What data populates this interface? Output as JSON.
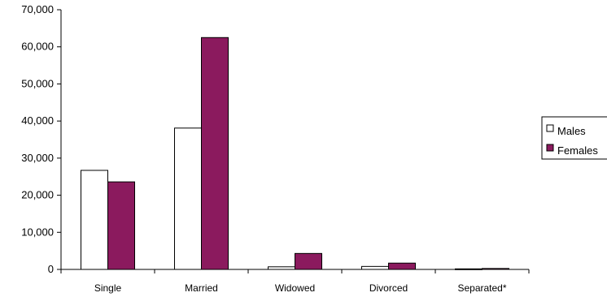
{
  "chart_data": {
    "type": "bar",
    "categories": [
      "Single",
      "Married",
      "Widowed",
      "Divorced",
      "Separated*"
    ],
    "series": [
      {
        "name": "Males",
        "values": [
          26700,
          38100,
          700,
          800,
          150
        ],
        "color": "#ffffff"
      },
      {
        "name": "Females",
        "values": [
          23600,
          62500,
          4300,
          1700,
          250
        ],
        "color": "#8b1a5e"
      }
    ],
    "title": "",
    "xlabel": "",
    "ylabel": "",
    "ylim": [
      0,
      70000
    ],
    "yticks": [
      "0",
      "10,000",
      "20,000",
      "30,000",
      "40,000",
      "50,000",
      "60,000",
      "70,000"
    ],
    "grid": false,
    "legend": "right"
  }
}
